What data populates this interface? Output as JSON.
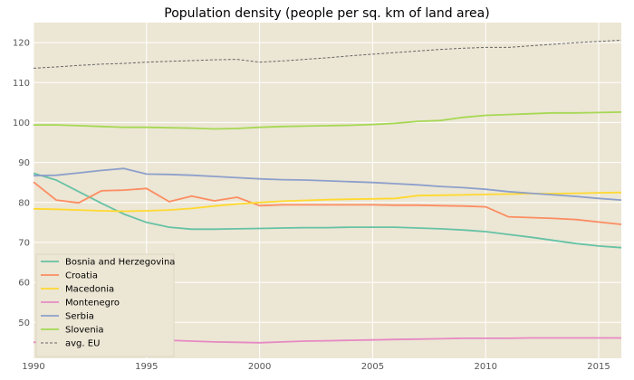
{
  "chart_data": {
    "type": "line",
    "title": "Population density (people per sq. km of land area)",
    "xlabel": "",
    "ylabel": "",
    "xlim": [
      1990,
      2016
    ],
    "ylim": [
      41,
      125
    ],
    "x_ticks": [
      1990,
      1995,
      2000,
      2005,
      2010,
      2015
    ],
    "y_ticks": [
      50,
      60,
      70,
      80,
      90,
      100,
      110,
      120
    ],
    "grid": true,
    "legend_position": "lower-left",
    "background": "#ece6d4",
    "x": [
      1990,
      1991,
      1992,
      1993,
      1994,
      1995,
      1996,
      1997,
      1998,
      1999,
      2000,
      2001,
      2002,
      2003,
      2004,
      2005,
      2006,
      2007,
      2008,
      2009,
      2010,
      2011,
      2012,
      2013,
      2014,
      2015,
      2016
    ],
    "series": [
      {
        "name": "Bosnia and Herzegovina",
        "color": "#66c2a5",
        "dashed": false,
        "values": [
          87.3,
          85.6,
          82.7,
          79.8,
          77.1,
          75.0,
          73.8,
          73.3,
          73.3,
          73.4,
          73.5,
          73.6,
          73.7,
          73.7,
          73.8,
          73.8,
          73.8,
          73.6,
          73.4,
          73.1,
          72.7,
          72.0,
          71.3,
          70.5,
          69.7,
          69.1,
          68.7
        ]
      },
      {
        "name": "Croatia",
        "color": "#fc8d62",
        "dashed": false,
        "values": [
          85.1,
          80.6,
          79.9,
          82.9,
          83.1,
          83.5,
          80.2,
          81.6,
          80.4,
          81.3,
          79.2,
          79.4,
          79.4,
          79.4,
          79.4,
          79.4,
          79.3,
          79.3,
          79.2,
          79.1,
          78.9,
          76.4,
          76.2,
          76.0,
          75.7,
          75.1,
          74.5
        ]
      },
      {
        "name": "Macedonia",
        "color": "#ffd92f",
        "dashed": false,
        "values": [
          78.4,
          78.3,
          78.1,
          77.9,
          77.8,
          77.9,
          78.1,
          78.5,
          79.1,
          79.6,
          80.0,
          80.3,
          80.5,
          80.7,
          80.8,
          80.9,
          81.0,
          81.7,
          81.8,
          81.9,
          82.0,
          82.1,
          82.2,
          82.2,
          82.3,
          82.4,
          82.5
        ]
      },
      {
        "name": "Montenegro",
        "color": "#e78ac3",
        "dashed": false,
        "values": [
          45.0,
          45.1,
          45.2,
          45.3,
          45.4,
          45.5,
          45.5,
          45.3,
          45.1,
          45.0,
          44.9,
          45.1,
          45.3,
          45.4,
          45.5,
          45.6,
          45.7,
          45.8,
          45.9,
          46.0,
          46.0,
          46.0,
          46.1,
          46.1,
          46.1,
          46.1,
          46.1
        ]
      },
      {
        "name": "Serbia",
        "color": "#8da0cb",
        "dashed": false,
        "values": [
          86.7,
          86.8,
          87.4,
          88.0,
          88.5,
          87.1,
          87.0,
          86.8,
          86.5,
          86.2,
          85.9,
          85.7,
          85.6,
          85.4,
          85.2,
          85.0,
          84.7,
          84.4,
          84.0,
          83.7,
          83.3,
          82.7,
          82.3,
          81.9,
          81.5,
          81.0,
          80.6
        ]
      },
      {
        "name": "Slovenia",
        "color": "#a6d854",
        "dashed": false,
        "values": [
          99.4,
          99.4,
          99.2,
          99.0,
          98.8,
          98.8,
          98.7,
          98.6,
          98.4,
          98.5,
          98.8,
          99.0,
          99.1,
          99.2,
          99.3,
          99.5,
          99.8,
          100.3,
          100.5,
          101.3,
          101.8,
          102.0,
          102.2,
          102.4,
          102.4,
          102.5,
          102.6
        ]
      },
      {
        "name": "avg. EU",
        "color": "#666666",
        "dashed": true,
        "values": [
          113.6,
          113.9,
          114.3,
          114.6,
          114.8,
          115.1,
          115.3,
          115.5,
          115.7,
          115.8,
          115.1,
          115.4,
          115.8,
          116.2,
          116.7,
          117.1,
          117.5,
          117.9,
          118.3,
          118.6,
          118.8,
          118.8,
          119.2,
          119.6,
          120.0,
          120.3,
          120.6
        ]
      }
    ]
  }
}
